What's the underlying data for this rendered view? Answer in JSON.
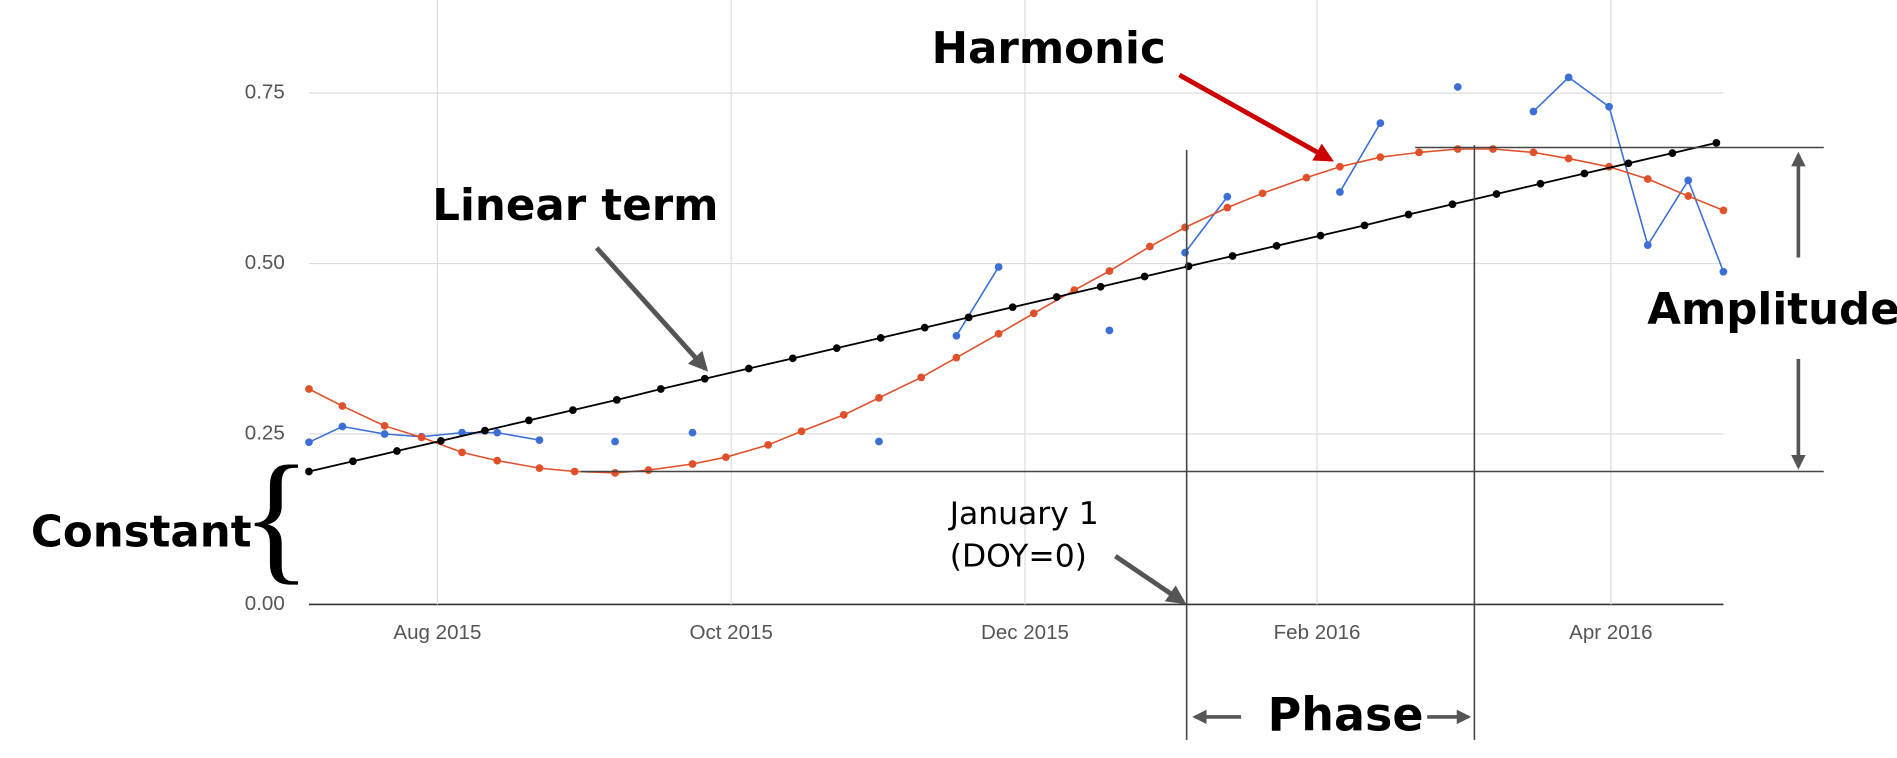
{
  "chart_data": {
    "type": "line",
    "annotations": [
      "Harmonic",
      "Linear term",
      "Amplitude",
      "Constant",
      "January 1",
      "(DOY=0)",
      "Phase"
    ],
    "xlim": [
      2015.51,
      2016.314
    ],
    "xticks": [
      {
        "value": 2015.583,
        "label": "Aug 2015"
      },
      {
        "value": 2015.75,
        "label": "Oct 2015"
      },
      {
        "value": 2015.917,
        "label": "Dec 2015"
      },
      {
        "value": 2016.083,
        "label": "Feb 2016"
      },
      {
        "value": 2016.25,
        "label": "Apr 2016"
      }
    ],
    "ylim": [
      0,
      0.75
    ],
    "yticks": [
      {
        "value": 0,
        "label": "0.00"
      },
      {
        "value": 0.25,
        "label": "0.25"
      },
      {
        "value": 0.5,
        "label": "0.50"
      },
      {
        "value": 0.75,
        "label": "0.75"
      }
    ],
    "grid": true,
    "series": [
      {
        "color": "#3b6fd6",
        "x": [
          2015.51,
          2015.529,
          2015.553,
          2015.574,
          2015.597,
          2015.617,
          2015.641,
          2015.661,
          2015.684,
          2015.703,
          2015.728,
          2015.747,
          2015.771,
          2015.79,
          2015.814,
          2015.834,
          2015.858,
          2015.878,
          2015.902,
          2015.922,
          2015.945,
          2015.965,
          2015.988,
          2016.008,
          2016.032,
          2016.052,
          2016.077,
          2016.096,
          2016.119,
          2016.141,
          2016.163,
          2016.183,
          2016.206,
          2016.226,
          2016.249,
          2016.271,
          2016.294,
          2016.314
        ],
        "values": [
          0.238,
          0.261,
          0.25,
          0.246,
          0.252,
          0.252,
          0.241,
          null,
          0.239,
          null,
          0.252,
          null,
          null,
          null,
          null,
          0.239,
          null,
          0.394,
          0.495,
          null,
          null,
          0.402,
          null,
          0.516,
          0.598,
          null,
          null,
          0.605,
          0.706,
          null,
          0.759,
          null,
          0.723,
          0.773,
          0.73,
          0.527,
          0.622,
          0.488
        ]
      },
      {
        "color": "#e0502a",
        "x": [
          2015.51,
          2015.529,
          2015.553,
          2015.574,
          2015.597,
          2015.617,
          2015.641,
          2015.661,
          2015.684,
          2015.703,
          2015.728,
          2015.747,
          2015.771,
          2015.79,
          2015.814,
          2015.834,
          2015.858,
          2015.878,
          2015.902,
          2015.922,
          2015.945,
          2015.965,
          2015.988,
          2016.008,
          2016.032,
          2016.052,
          2016.077,
          2016.096,
          2016.119,
          2016.141,
          2016.163,
          2016.183,
          2016.206,
          2016.226,
          2016.249,
          2016.271,
          2016.294,
          2016.314
        ],
        "values": [
          0.316,
          0.291,
          0.262,
          0.245,
          0.223,
          0.211,
          0.2,
          0.195,
          0.193,
          0.197,
          0.206,
          0.216,
          0.234,
          0.254,
          0.278,
          0.303,
          0.333,
          0.362,
          0.397,
          0.427,
          0.461,
          0.489,
          0.525,
          0.553,
          0.582,
          0.603,
          0.626,
          0.642,
          0.656,
          0.663,
          0.668,
          0.668,
          0.663,
          0.654,
          0.642,
          0.624,
          0.599,
          0.578
        ]
      },
      {
        "color": "#000000",
        "x": [
          2015.51,
          2015.535,
          2015.56,
          2015.585,
          2015.61,
          2015.635,
          2015.66,
          2015.685,
          2015.71,
          2015.735,
          2015.76,
          2015.785,
          2015.81,
          2015.835,
          2015.86,
          2015.885,
          2015.91,
          2015.935,
          2015.96,
          2015.985,
          2016.01,
          2016.035,
          2016.06,
          2016.085,
          2016.11,
          2016.135,
          2016.16,
          2016.185,
          2016.21,
          2016.235,
          2016.26,
          2016.285,
          2016.31
        ],
        "values": [
          0.195,
          0.21,
          0.225,
          0.24,
          0.255,
          0.27,
          0.285,
          0.3,
          0.316,
          0.331,
          0.346,
          0.361,
          0.376,
          0.391,
          0.406,
          0.421,
          0.436,
          0.451,
          0.466,
          0.481,
          0.496,
          0.511,
          0.526,
          0.541,
          0.556,
          0.572,
          0.587,
          0.602,
          0.617,
          0.632,
          0.647,
          0.662,
          0.677
        ]
      }
    ]
  }
}
